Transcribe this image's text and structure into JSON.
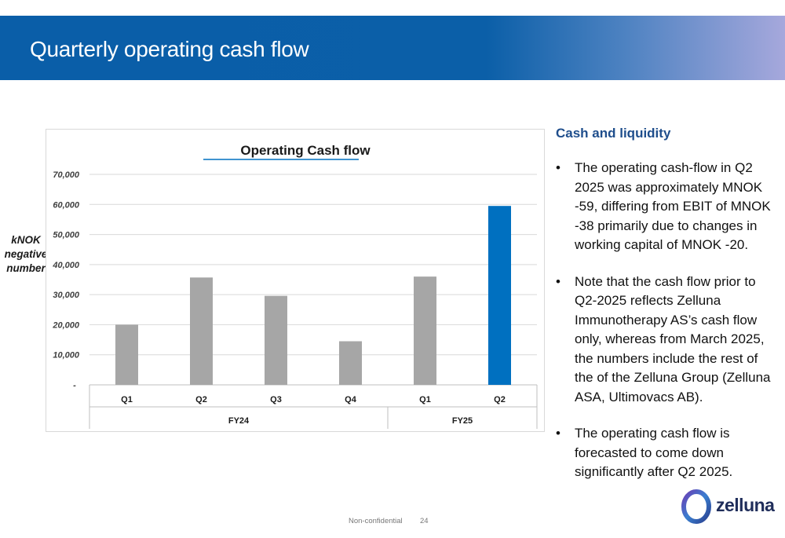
{
  "header": {
    "title": "Quarterly operating cash flow"
  },
  "side_label": [
    "kNOK",
    "negative",
    "number"
  ],
  "chart_data": {
    "type": "bar",
    "title": "Operating Cash flow",
    "categories": [
      "Q1",
      "Q2",
      "Q3",
      "Q4",
      "Q1",
      "Q2"
    ],
    "groups": [
      {
        "label": "FY24",
        "categories": [
          "Q1",
          "Q2",
          "Q3",
          "Q4"
        ]
      },
      {
        "label": "FY25",
        "categories": [
          "Q1",
          "Q2"
        ]
      }
    ],
    "values": [
      20000,
      35700,
      29600,
      14500,
      36000,
      59500
    ],
    "bar_colors": [
      "#a6a6a6",
      "#a6a6a6",
      "#a6a6a6",
      "#a6a6a6",
      "#a6a6a6",
      "#0070c0"
    ],
    "ylim": [
      0,
      70000
    ],
    "y_ticks": [
      0,
      10000,
      20000,
      30000,
      40000,
      50000,
      60000,
      70000
    ],
    "y_tick_labels": [
      "-",
      "10,000",
      "20,000",
      "30,000",
      "40,000",
      "50,000",
      "60,000",
      "70,000"
    ],
    "grid": true,
    "title_underline_color": "#0070c0"
  },
  "panel": {
    "heading": "Cash and liquidity",
    "bullets": [
      {
        "symbol": "•",
        "text": "The operating cash-flow in Q2 2025 was approximately MNOK -59, differing from EBIT of MNOK -38 primarily due to changes in working capital of MNOK -20."
      },
      {
        "symbol": "•",
        "text": "Note that the cash flow prior to Q2-2025 reflects Zelluna Immunotherapy AS’s cash flow only, whereas from March 2025, the numbers include the rest of the of the Zelluna Group (Zelluna ASA, Ultimovacs AB)."
      },
      {
        "symbol": "•",
        "text": "The operating cash flow is forecasted to come down significantly after Q2 2025."
      }
    ]
  },
  "footer": {
    "confidentiality": "Non-confidential",
    "page_number": "24"
  },
  "logo": {
    "text": "zelluna"
  },
  "colors": {
    "header_blue": "#0a5ea8",
    "heading_blue": "#1f4e8c",
    "accent_bar": "#0070c0",
    "grey_bar": "#a6a6a6"
  }
}
